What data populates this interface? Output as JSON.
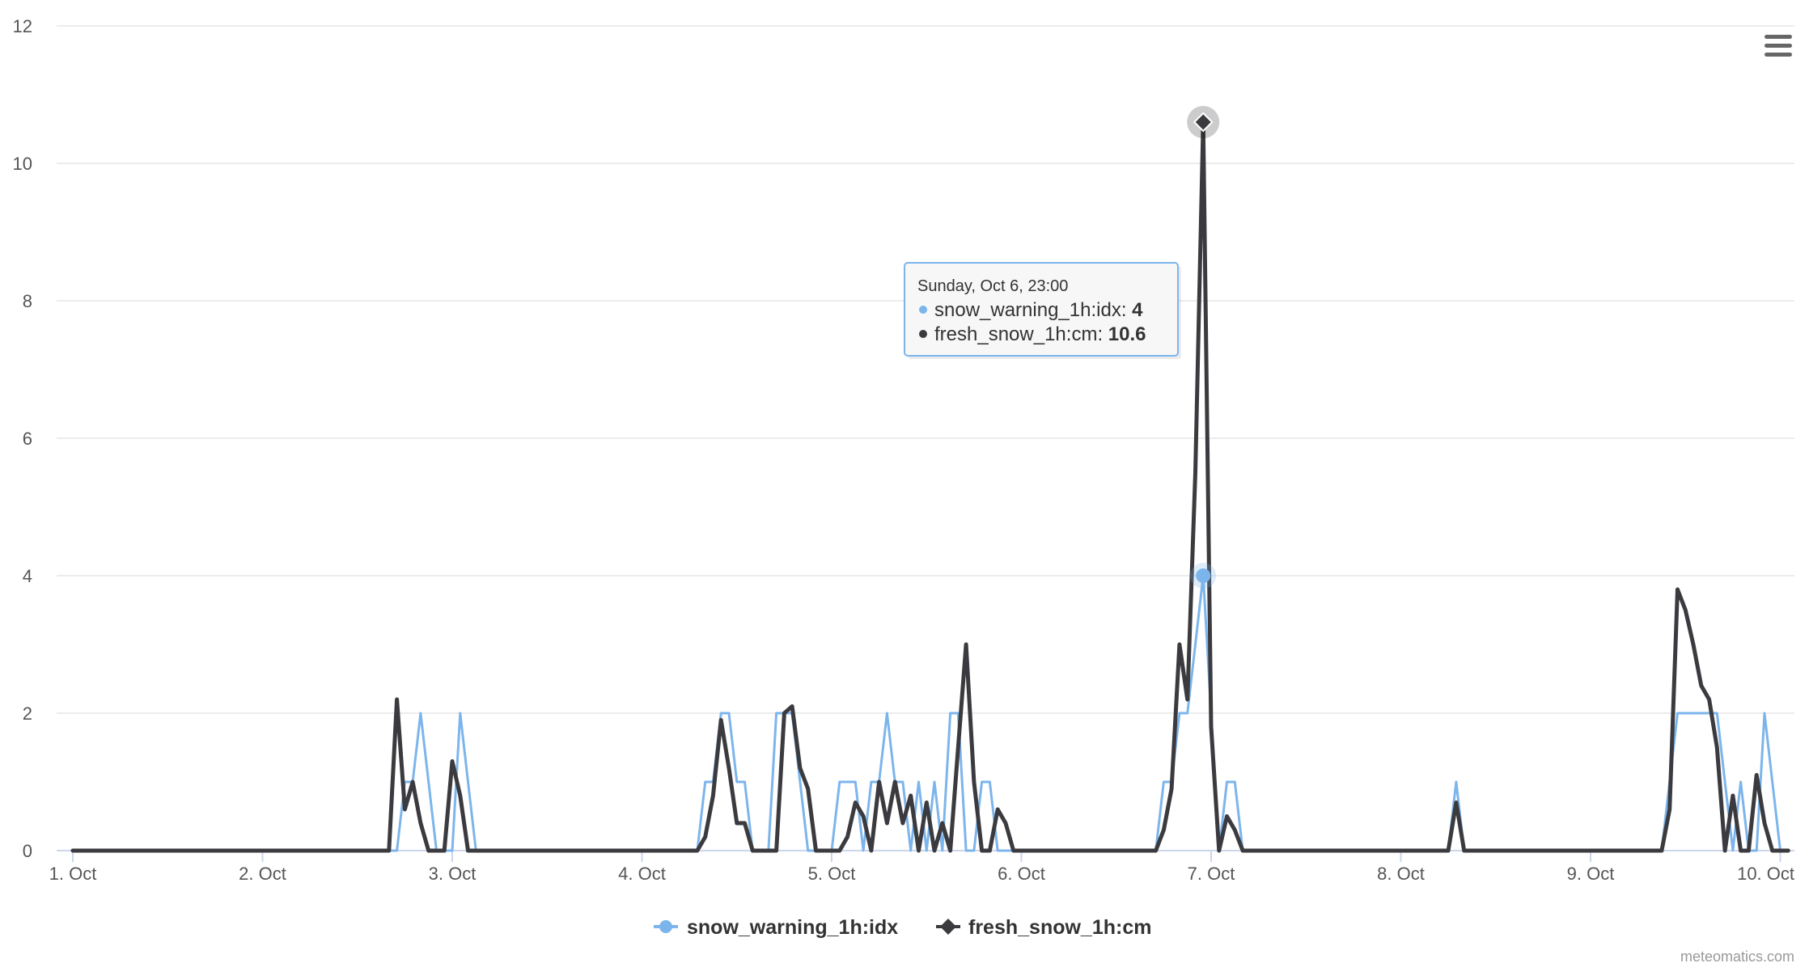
{
  "colors": {
    "snow_warning": "#7cb5ec",
    "fresh_snow": "#3b3b3f",
    "grid": "#e6e6e6",
    "axis": "#ccd6eb"
  },
  "menu": {
    "icon": "hamburger-menu-icon"
  },
  "credit": "meteomatics.com",
  "tooltip": {
    "header": "Sunday, Oct 6, 23:00",
    "rows": [
      {
        "series": "snow_warning_1h:idx",
        "value": "4"
      },
      {
        "series": "fresh_snow_1h:cm",
        "value": "10.6"
      }
    ]
  },
  "chart_data": {
    "type": "line",
    "title": "",
    "xlabel": "",
    "ylabel": "",
    "x_start": "Oct 1 00:00",
    "x_step_hours": 1,
    "x_ticks": [
      "1. Oct",
      "2. Oct",
      "3. Oct",
      "4. Oct",
      "5. Oct",
      "6. Oct",
      "7. Oct",
      "8. Oct",
      "9. Oct",
      "10. Oct"
    ],
    "ylim": [
      0,
      12
    ],
    "y_ticks": [
      "0",
      "2",
      "4",
      "6",
      "8",
      "10",
      "12"
    ],
    "grid": true,
    "legend": "bottom-center",
    "highlight_x": "Oct 6 23:00",
    "series": [
      {
        "name": "snow_warning_1h:idx",
        "marker": "circle",
        "points": [
          [
            "Oct 1 00:00",
            0
          ],
          [
            "Oct 2 17:00",
            0
          ],
          [
            "Oct 2 18:00",
            1
          ],
          [
            "Oct 2 19:00",
            1
          ],
          [
            "Oct 2 20:00",
            2
          ],
          [
            "Oct 2 21:00",
            1
          ],
          [
            "Oct 2 22:00",
            0
          ],
          [
            "Oct 2 23:00",
            0
          ],
          [
            "Oct 3 00:00",
            0
          ],
          [
            "Oct 3 01:00",
            2
          ],
          [
            "Oct 3 02:00",
            1
          ],
          [
            "Oct 3 03:00",
            0
          ],
          [
            "Oct 4 07:00",
            0
          ],
          [
            "Oct 4 08:00",
            1
          ],
          [
            "Oct 4 09:00",
            1
          ],
          [
            "Oct 4 10:00",
            2
          ],
          [
            "Oct 4 11:00",
            2
          ],
          [
            "Oct 4 12:00",
            1
          ],
          [
            "Oct 4 13:00",
            1
          ],
          [
            "Oct 4 14:00",
            0
          ],
          [
            "Oct 4 16:00",
            0
          ],
          [
            "Oct 4 17:00",
            2
          ],
          [
            "Oct 4 18:00",
            2
          ],
          [
            "Oct 4 19:00",
            2
          ],
          [
            "Oct 4 20:00",
            1
          ],
          [
            "Oct 4 21:00",
            0
          ],
          [
            "Oct 5 00:00",
            0
          ],
          [
            "Oct 5 01:00",
            1
          ],
          [
            "Oct 5 02:00",
            1
          ],
          [
            "Oct 5 03:00",
            1
          ],
          [
            "Oct 5 04:00",
            0
          ],
          [
            "Oct 5 05:00",
            1
          ],
          [
            "Oct 5 06:00",
            1
          ],
          [
            "Oct 5 07:00",
            2
          ],
          [
            "Oct 5 08:00",
            1
          ],
          [
            "Oct 5 09:00",
            1
          ],
          [
            "Oct 5 10:00",
            0
          ],
          [
            "Oct 5 11:00",
            1
          ],
          [
            "Oct 5 12:00",
            0
          ],
          [
            "Oct 5 13:00",
            1
          ],
          [
            "Oct 5 14:00",
            0
          ],
          [
            "Oct 5 15:00",
            2
          ],
          [
            "Oct 5 16:00",
            2
          ],
          [
            "Oct 5 17:00",
            0
          ],
          [
            "Oct 5 18:00",
            0
          ],
          [
            "Oct 5 19:00",
            1
          ],
          [
            "Oct 5 20:00",
            1
          ],
          [
            "Oct 5 21:00",
            0
          ],
          [
            "Oct 6 17:00",
            0
          ],
          [
            "Oct 6 18:00",
            1
          ],
          [
            "Oct 6 19:00",
            1
          ],
          [
            "Oct 6 20:00",
            2
          ],
          [
            "Oct 6 21:00",
            2
          ],
          [
            "Oct 6 22:00",
            3
          ],
          [
            "Oct 6 23:00",
            4
          ],
          [
            "Oct 7 00:00",
            2
          ],
          [
            "Oct 7 01:00",
            0
          ],
          [
            "Oct 7 02:00",
            1
          ],
          [
            "Oct 7 03:00",
            1
          ],
          [
            "Oct 7 04:00",
            0
          ],
          [
            "Oct 8 06:00",
            0
          ],
          [
            "Oct 8 07:00",
            1
          ],
          [
            "Oct 8 08:00",
            0
          ],
          [
            "Oct 9 09:00",
            0
          ],
          [
            "Oct 9 10:00",
            1
          ],
          [
            "Oct 9 11:00",
            2
          ],
          [
            "Oct 9 12:00",
            2
          ],
          [
            "Oct 9 13:00",
            2
          ],
          [
            "Oct 9 14:00",
            2
          ],
          [
            "Oct 9 15:00",
            2
          ],
          [
            "Oct 9 16:00",
            2
          ],
          [
            "Oct 9 17:00",
            1
          ],
          [
            "Oct 9 18:00",
            0
          ],
          [
            "Oct 9 19:00",
            1
          ],
          [
            "Oct 9 20:00",
            0
          ],
          [
            "Oct 9 21:00",
            0
          ],
          [
            "Oct 9 22:00",
            2
          ],
          [
            "Oct 9 23:00",
            1
          ],
          [
            "Oct 10 00:00",
            0
          ],
          [
            "Oct 10 01:00",
            0
          ]
        ]
      },
      {
        "name": "fresh_snow_1h:cm",
        "marker": "diamond",
        "points": [
          [
            "Oct 1 00:00",
            0
          ],
          [
            "Oct 2 16:00",
            0
          ],
          [
            "Oct 2 17:00",
            2.2
          ],
          [
            "Oct 2 18:00",
            0.6
          ],
          [
            "Oct 2 19:00",
            1.0
          ],
          [
            "Oct 2 20:00",
            0.4
          ],
          [
            "Oct 2 21:00",
            0
          ],
          [
            "Oct 2 23:00",
            0
          ],
          [
            "Oct 3 00:00",
            1.3
          ],
          [
            "Oct 3 01:00",
            0.8
          ],
          [
            "Oct 3 02:00",
            0
          ],
          [
            "Oct 4 07:00",
            0
          ],
          [
            "Oct 4 08:00",
            0.2
          ],
          [
            "Oct 4 09:00",
            0.8
          ],
          [
            "Oct 4 10:00",
            1.9
          ],
          [
            "Oct 4 11:00",
            1.2
          ],
          [
            "Oct 4 12:00",
            0.4
          ],
          [
            "Oct 4 13:00",
            0.4
          ],
          [
            "Oct 4 14:00",
            0
          ],
          [
            "Oct 4 17:00",
            0
          ],
          [
            "Oct 4 18:00",
            2.0
          ],
          [
            "Oct 4 19:00",
            2.1
          ],
          [
            "Oct 4 20:00",
            1.2
          ],
          [
            "Oct 4 21:00",
            0.9
          ],
          [
            "Oct 4 22:00",
            0
          ],
          [
            "Oct 5 01:00",
            0
          ],
          [
            "Oct 5 02:00",
            0.2
          ],
          [
            "Oct 5 03:00",
            0.7
          ],
          [
            "Oct 5 04:00",
            0.5
          ],
          [
            "Oct 5 05:00",
            0
          ],
          [
            "Oct 5 06:00",
            1.0
          ],
          [
            "Oct 5 07:00",
            0.4
          ],
          [
            "Oct 5 08:00",
            1.0
          ],
          [
            "Oct 5 09:00",
            0.4
          ],
          [
            "Oct 5 10:00",
            0.8
          ],
          [
            "Oct 5 11:00",
            0
          ],
          [
            "Oct 5 12:00",
            0.7
          ],
          [
            "Oct 5 13:00",
            0
          ],
          [
            "Oct 5 14:00",
            0.4
          ],
          [
            "Oct 5 15:00",
            0
          ],
          [
            "Oct 5 16:00",
            1.5
          ],
          [
            "Oct 5 17:00",
            3.0
          ],
          [
            "Oct 5 18:00",
            1.0
          ],
          [
            "Oct 5 19:00",
            0
          ],
          [
            "Oct 5 20:00",
            0
          ],
          [
            "Oct 5 21:00",
            0.6
          ],
          [
            "Oct 5 22:00",
            0.4
          ],
          [
            "Oct 5 23:00",
            0
          ],
          [
            "Oct 6 17:00",
            0
          ],
          [
            "Oct 6 18:00",
            0.3
          ],
          [
            "Oct 6 19:00",
            0.9
          ],
          [
            "Oct 6 20:00",
            3.0
          ],
          [
            "Oct 6 21:00",
            2.2
          ],
          [
            "Oct 6 22:00",
            5.5
          ],
          [
            "Oct 6 23:00",
            10.6
          ],
          [
            "Oct 7 00:00",
            1.8
          ],
          [
            "Oct 7 01:00",
            0
          ],
          [
            "Oct 7 02:00",
            0.5
          ],
          [
            "Oct 7 03:00",
            0.3
          ],
          [
            "Oct 7 04:00",
            0
          ],
          [
            "Oct 8 06:00",
            0
          ],
          [
            "Oct 8 07:00",
            0.7
          ],
          [
            "Oct 8 08:00",
            0
          ],
          [
            "Oct 9 09:00",
            0
          ],
          [
            "Oct 9 10:00",
            0.6
          ],
          [
            "Oct 9 11:00",
            3.8
          ],
          [
            "Oct 9 12:00",
            3.5
          ],
          [
            "Oct 9 13:00",
            3.0
          ],
          [
            "Oct 9 14:00",
            2.4
          ],
          [
            "Oct 9 15:00",
            2.2
          ],
          [
            "Oct 9 16:00",
            1.5
          ],
          [
            "Oct 9 17:00",
            0
          ],
          [
            "Oct 9 18:00",
            0.8
          ],
          [
            "Oct 9 19:00",
            0
          ],
          [
            "Oct 9 20:00",
            0
          ],
          [
            "Oct 9 21:00",
            1.1
          ],
          [
            "Oct 9 22:00",
            0.4
          ],
          [
            "Oct 9 23:00",
            0
          ],
          [
            "Oct 10 01:00",
            0
          ]
        ]
      }
    ]
  }
}
